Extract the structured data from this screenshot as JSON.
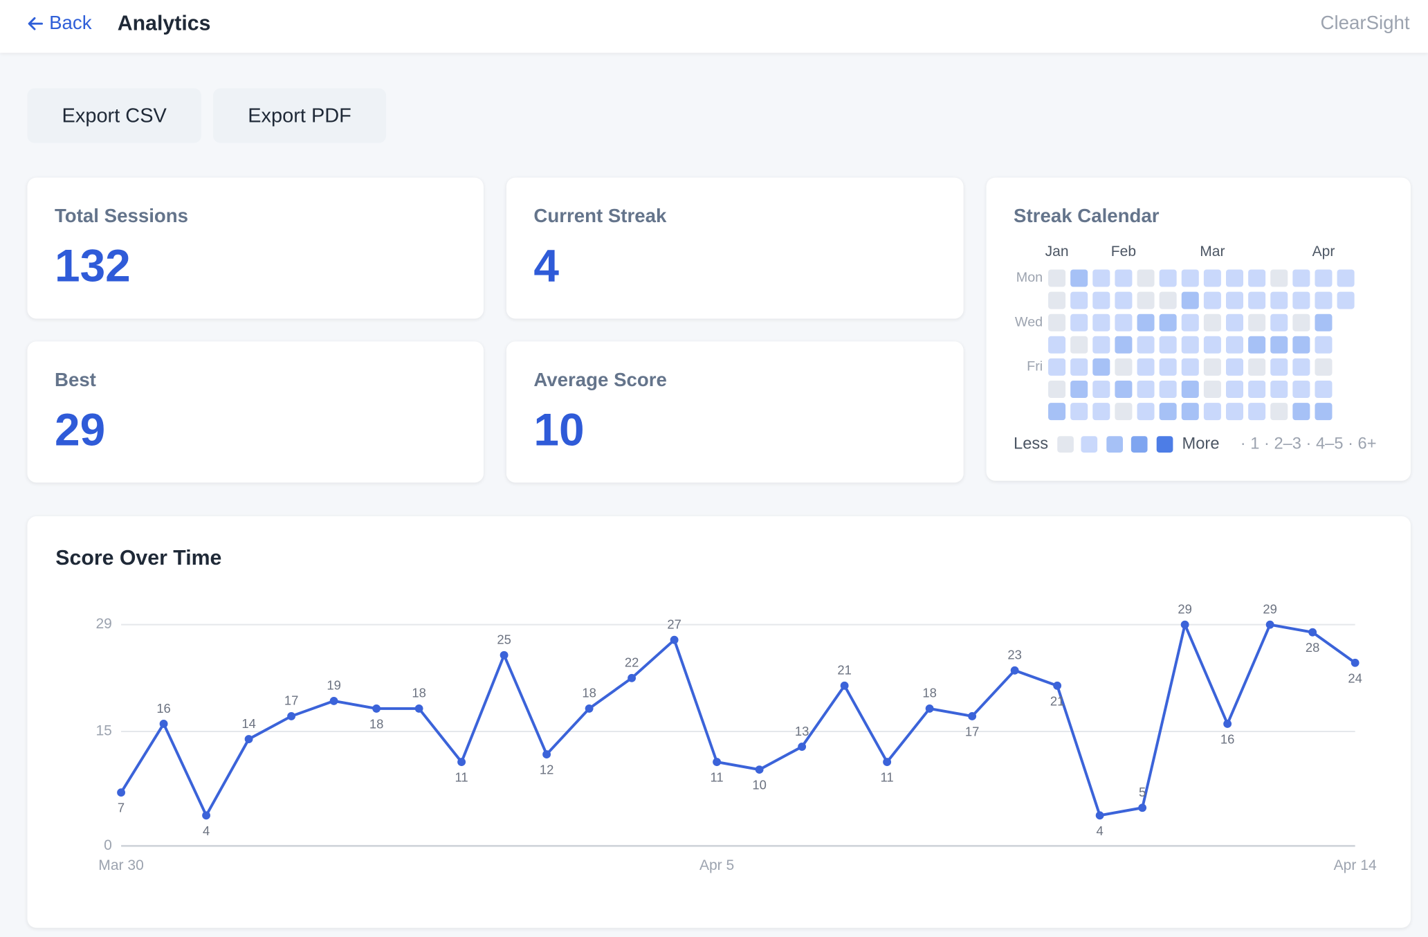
{
  "header": {
    "back": "Back",
    "title": "Analytics",
    "brand": "ClearSight"
  },
  "actions": [
    "Export CSV",
    "Export PDF"
  ],
  "stats": [
    {
      "label": "Total Sessions",
      "value": 132
    },
    {
      "label": "Current Streak",
      "value": 4
    },
    {
      "label": "Best",
      "value": 29
    },
    {
      "label": "Average Score",
      "value": 10
    }
  ],
  "calendar": {
    "title": "Streak Calendar",
    "months": [
      "Jan",
      null,
      null,
      "Feb",
      null,
      null,
      null,
      "Mar",
      null,
      null,
      null,
      null,
      "Apr",
      null
    ],
    "days": [
      "Mon",
      null,
      "Wed",
      null,
      "Fri",
      null,
      null
    ],
    "rows": [
      [
        0,
        2,
        1,
        1,
        0,
        1,
        1,
        1,
        1,
        1,
        0,
        1,
        1,
        1
      ],
      [
        0,
        1,
        1,
        1,
        0,
        0,
        2,
        1,
        1,
        1,
        1,
        1,
        1,
        1
      ],
      [
        0,
        1,
        1,
        1,
        2,
        2,
        1,
        0,
        1,
        0,
        1,
        0,
        2
      ],
      [
        1,
        0,
        1,
        2,
        1,
        1,
        1,
        1,
        1,
        2,
        2,
        2,
        1
      ],
      [
        1,
        1,
        2,
        0,
        1,
        1,
        1,
        0,
        1,
        0,
        1,
        1,
        0
      ],
      [
        0,
        2,
        1,
        2,
        1,
        1,
        2,
        0,
        1,
        1,
        1,
        1,
        1
      ],
      [
        2,
        1,
        1,
        0,
        1,
        2,
        2,
        1,
        1,
        1,
        0,
        2,
        2
      ]
    ],
    "level_colors": [
      "#e3e7ee",
      "#c9d8fb",
      "#a6c1f6",
      "#7fa5f0",
      "#4d7de6"
    ],
    "legend": {
      "less": "Less",
      "more": "More",
      "scale": "· 1 · 2–3 · 4–5 · 6+"
    }
  },
  "chart_data": {
    "type": "line",
    "title": "Score Over Time",
    "categories": [
      "Mar 30",
      null,
      null,
      null,
      null,
      null,
      null,
      null,
      null,
      null,
      null,
      null,
      null,
      null,
      "Apr 5",
      null,
      null,
      null,
      null,
      null,
      null,
      null,
      null,
      null,
      null,
      null,
      null,
      null,
      null,
      "Apr 14"
    ],
    "values": [
      7,
      16,
      4,
      14,
      17,
      19,
      18,
      18,
      11,
      25,
      12,
      18,
      22,
      27,
      11,
      10,
      13,
      21,
      11,
      18,
      17,
      23,
      21,
      4,
      5,
      29,
      16,
      29,
      28,
      24
    ],
    "color": "#3b63d9",
    "ylim": [
      0,
      29
    ],
    "yticks": [
      0,
      15,
      29
    ],
    "grid": true
  }
}
